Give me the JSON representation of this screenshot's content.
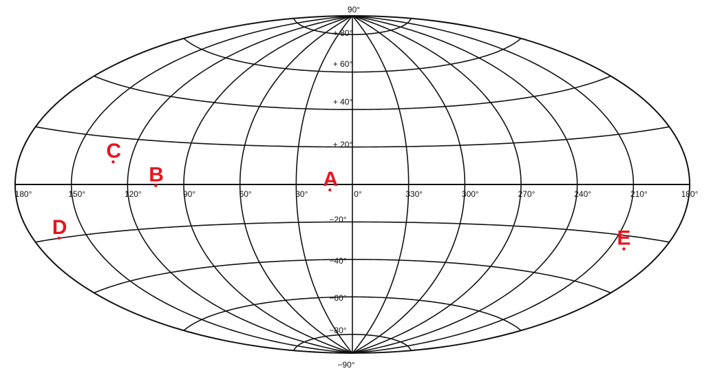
{
  "projection": "Aitoff",
  "grid": {
    "line_color": "#111111",
    "longitude_step_deg": 30,
    "latitude_step_deg": 20,
    "center_longitude_deg": 0,
    "longitude_increases": "leftward"
  },
  "labels": {
    "longitude": [
      "180°",
      "150°",
      "120°",
      "90°",
      "60°",
      "30°",
      "0°",
      "330°",
      "300°",
      "270°",
      "240°",
      "210°",
      "180°"
    ],
    "latitude_north": [
      "90°",
      "+ 80°",
      "+ 60°",
      "+ 40°",
      "+ 20°"
    ],
    "latitude_south": [
      "−20°",
      "−40°",
      "−60°",
      "−80°",
      "−90°"
    ]
  },
  "markers_color": "#e8141e",
  "markers": [
    {
      "letter": "A",
      "lon_deg": 12,
      "lat_deg": 0
    },
    {
      "letter": "B",
      "lon_deg": 105,
      "lat_deg": 2
    },
    {
      "letter": "C",
      "lon_deg": 130,
      "lat_deg": 12
    },
    {
      "letter": "D",
      "lon_deg": 164,
      "lat_deg": -18
    },
    {
      "letter": "E",
      "lon_deg": 204,
      "lat_deg": -23
    }
  ]
}
